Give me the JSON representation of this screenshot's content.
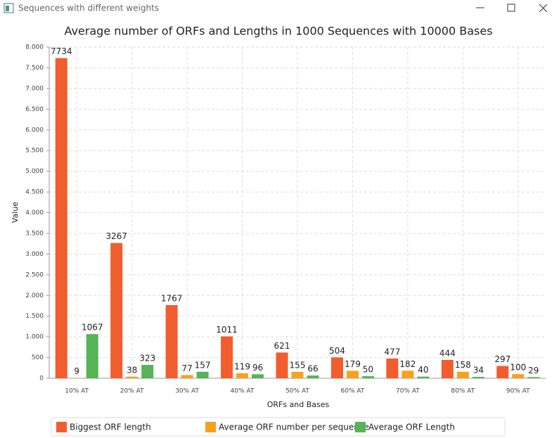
{
  "window": {
    "title": "Sequences with different weights"
  },
  "chart_data": {
    "type": "bar",
    "title": "Average number of ORFs and Lengths in 1000 Sequences with 10000 Bases",
    "x_label": "ORFs and Bases",
    "y_label": "Value",
    "categories": [
      "10% AT",
      "20% AT",
      "30% AT",
      "40% AT",
      "50% AT",
      "60% AT",
      "70% AT",
      "80% AT",
      "90% AT"
    ],
    "series": [
      {
        "name": "Biggest ORF length",
        "color": "#f15d2c",
        "values": [
          7734,
          3267,
          1767,
          1011,
          621,
          504,
          477,
          444,
          297
        ]
      },
      {
        "name": "Average ORF number per sequence",
        "color": "#f5a21f",
        "values": [
          9,
          38,
          77,
          119,
          155,
          179,
          182,
          158,
          100
        ]
      },
      {
        "name": "Average ORF Length",
        "color": "#56b456",
        "values": [
          1067,
          323,
          157,
          96,
          66,
          50,
          40,
          34,
          29
        ]
      }
    ],
    "ylim": [
      0,
      8000
    ],
    "yticks": [
      0,
      500,
      {
        "value": 1000,
        "label": "1.000"
      },
      {
        "value": 1500,
        "label": "1.500"
      },
      {
        "value": 2000,
        "label": "2.000"
      },
      {
        "value": 2500,
        "label": "2.500"
      },
      {
        "value": 3000,
        "label": "3.000"
      },
      {
        "value": 3500,
        "label": "3.500"
      },
      {
        "value": 4000,
        "label": "4.000"
      },
      {
        "value": 4500,
        "label": "4.500"
      },
      {
        "value": 5000,
        "label": "5.000"
      },
      {
        "value": 5500,
        "label": "5.500"
      },
      {
        "value": 6000,
        "label": "6.000"
      },
      {
        "value": 6500,
        "label": "6.500"
      },
      {
        "value": 7000,
        "label": "7.000"
      },
      {
        "value": 7500,
        "label": "7.500"
      },
      {
        "value": 8000,
        "label": "8.000"
      }
    ],
    "grid": true,
    "legend": "bottom"
  }
}
